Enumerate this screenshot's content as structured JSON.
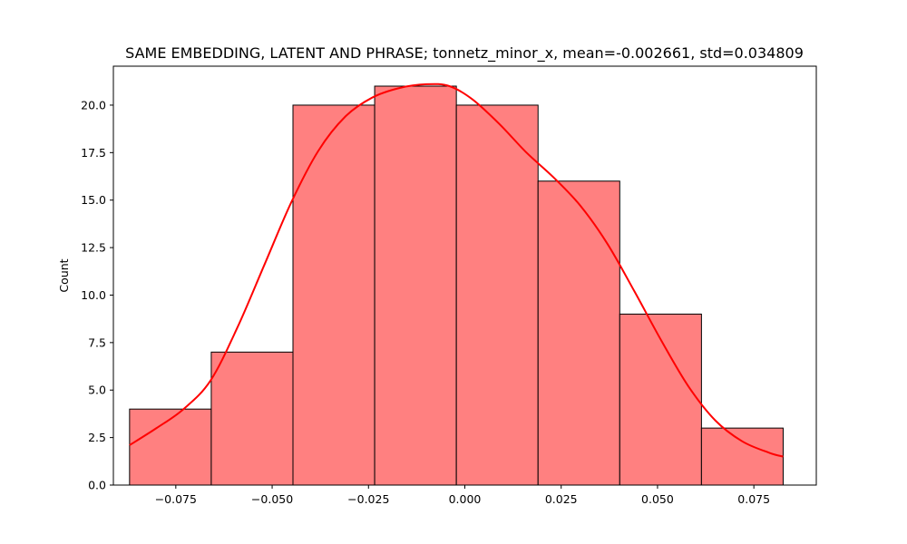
{
  "chart_data": {
    "type": "bar",
    "title": "SAME EMBEDDING, LATENT AND PHRASE; tonnetz_minor_x, mean=-0.002661, std=0.034809",
    "xlabel": "",
    "ylabel": "Count",
    "xlim": [
      -0.0912,
      0.0912
    ],
    "ylim": [
      0,
      22.05
    ],
    "x_ticks": [
      -0.075,
      -0.05,
      -0.025,
      0.0,
      0.025,
      0.05,
      0.075
    ],
    "x_tick_labels": [
      "−0.075",
      "−0.050",
      "−0.025",
      "0.000",
      "0.025",
      "0.050",
      "0.075"
    ],
    "y_ticks": [
      0,
      2.5,
      5,
      7.5,
      10,
      12.5,
      15,
      17.5,
      20
    ],
    "y_tick_labels": [
      "0.0",
      "2.5",
      "5.0",
      "7.5",
      "10.0",
      "12.5",
      "15.0",
      "17.5",
      "20.0"
    ],
    "bins": [
      {
        "x0": -0.087,
        "x1": -0.0658,
        "count": 4
      },
      {
        "x0": -0.0658,
        "x1": -0.0446,
        "count": 7
      },
      {
        "x0": -0.0446,
        "x1": -0.0234,
        "count": 20
      },
      {
        "x0": -0.0234,
        "x1": -0.0022,
        "count": 21
      },
      {
        "x0": -0.0022,
        "x1": 0.019,
        "count": 20
      },
      {
        "x0": 0.019,
        "x1": 0.0402,
        "count": 16
      },
      {
        "x0": 0.0402,
        "x1": 0.0614,
        "count": 9
      },
      {
        "x0": 0.0614,
        "x1": 0.0826,
        "count": 3
      }
    ],
    "kde": {
      "x": [
        -0.087,
        -0.08,
        -0.073,
        -0.066,
        -0.059,
        -0.052,
        -0.045,
        -0.038,
        -0.031,
        -0.024,
        -0.017,
        -0.01,
        -0.004,
        0.002,
        0.009,
        0.016,
        0.023,
        0.03,
        0.037,
        0.044,
        0.051,
        0.058,
        0.065,
        0.072,
        0.079,
        0.0826
      ],
      "y": [
        2.1,
        3.0,
        4.0,
        5.5,
        8.3,
        11.6,
        14.9,
        17.6,
        19.4,
        20.4,
        20.9,
        21.1,
        21.0,
        20.3,
        19.0,
        17.5,
        16.2,
        14.7,
        12.7,
        10.2,
        7.6,
        5.2,
        3.4,
        2.3,
        1.7,
        1.5
      ]
    },
    "bar_color": "#ff8080",
    "bar_edge_color": "#000000",
    "kde_color": "#ff0000",
    "grid": false,
    "legend": false
  }
}
